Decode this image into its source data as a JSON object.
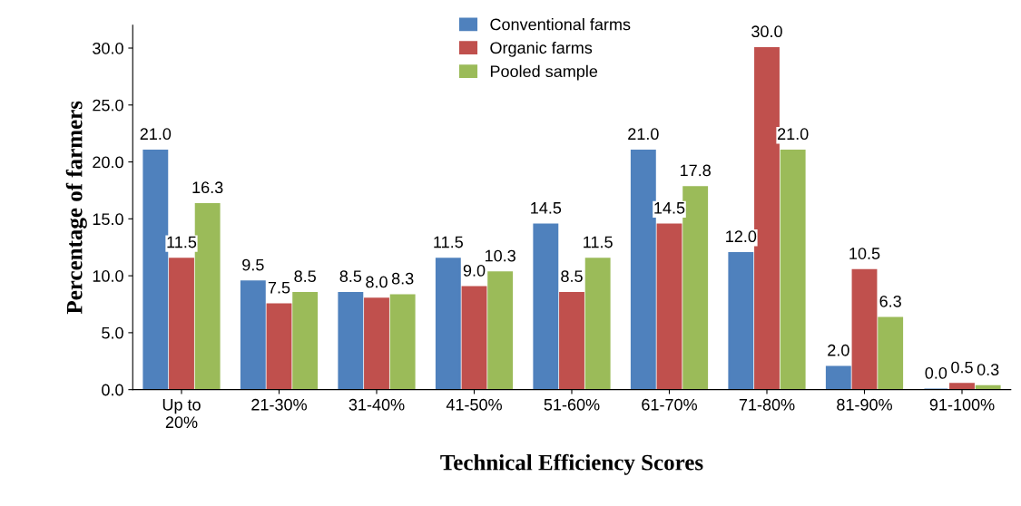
{
  "chart_data": {
    "type": "bar",
    "xlabel": "Technical Efficiency Scores",
    "ylabel": "Percentage of farmers",
    "categories": [
      "Up to\n20%",
      "21-30%",
      "31-40%",
      "41-50%",
      "51-60%",
      "61-70%",
      "71-80%",
      "81-90%",
      "91-100%"
    ],
    "series": [
      {
        "name": "Conventional farms",
        "color": "#4f81bd",
        "values": [
          21.0,
          9.5,
          8.5,
          11.5,
          14.5,
          21.0,
          12.0,
          2.0,
          0.0
        ],
        "value_labels": [
          "21.0",
          "9.5",
          "8.5",
          "11.5",
          "14.5",
          "21.0",
          "12.0",
          "2.0",
          "0.0"
        ]
      },
      {
        "name": "Organic farms",
        "color": "#c0504d",
        "values": [
          11.5,
          7.5,
          8.0,
          9.0,
          8.5,
          14.5,
          30.0,
          10.5,
          0.5
        ],
        "value_labels": [
          "11.5",
          "7.5",
          "8.0",
          "9.0",
          "8.5",
          "14.5",
          "30.0",
          "10.5",
          "0.5"
        ]
      },
      {
        "name": "Pooled sample",
        "color": "#9bbb59",
        "values": [
          16.3,
          8.5,
          8.3,
          10.3,
          11.5,
          17.8,
          21.0,
          6.3,
          0.3
        ],
        "value_labels": [
          "16.3",
          "8.5",
          "8.3",
          "10.3",
          "11.5",
          "17.8",
          "21.0",
          "6.3",
          "0.3"
        ]
      }
    ],
    "ylim": [
      0,
      32
    ],
    "yticks": [
      {
        "value": 0,
        "label": "0.0"
      },
      {
        "value": 5,
        "label": "5.0"
      },
      {
        "value": 10,
        "label": "10.0"
      },
      {
        "value": 15,
        "label": "15.0"
      },
      {
        "value": 20,
        "label": "20.0"
      },
      {
        "value": 25,
        "label": "25.0"
      },
      {
        "value": 30,
        "label": "30.0"
      }
    ],
    "grid": false,
    "legend": "top"
  }
}
